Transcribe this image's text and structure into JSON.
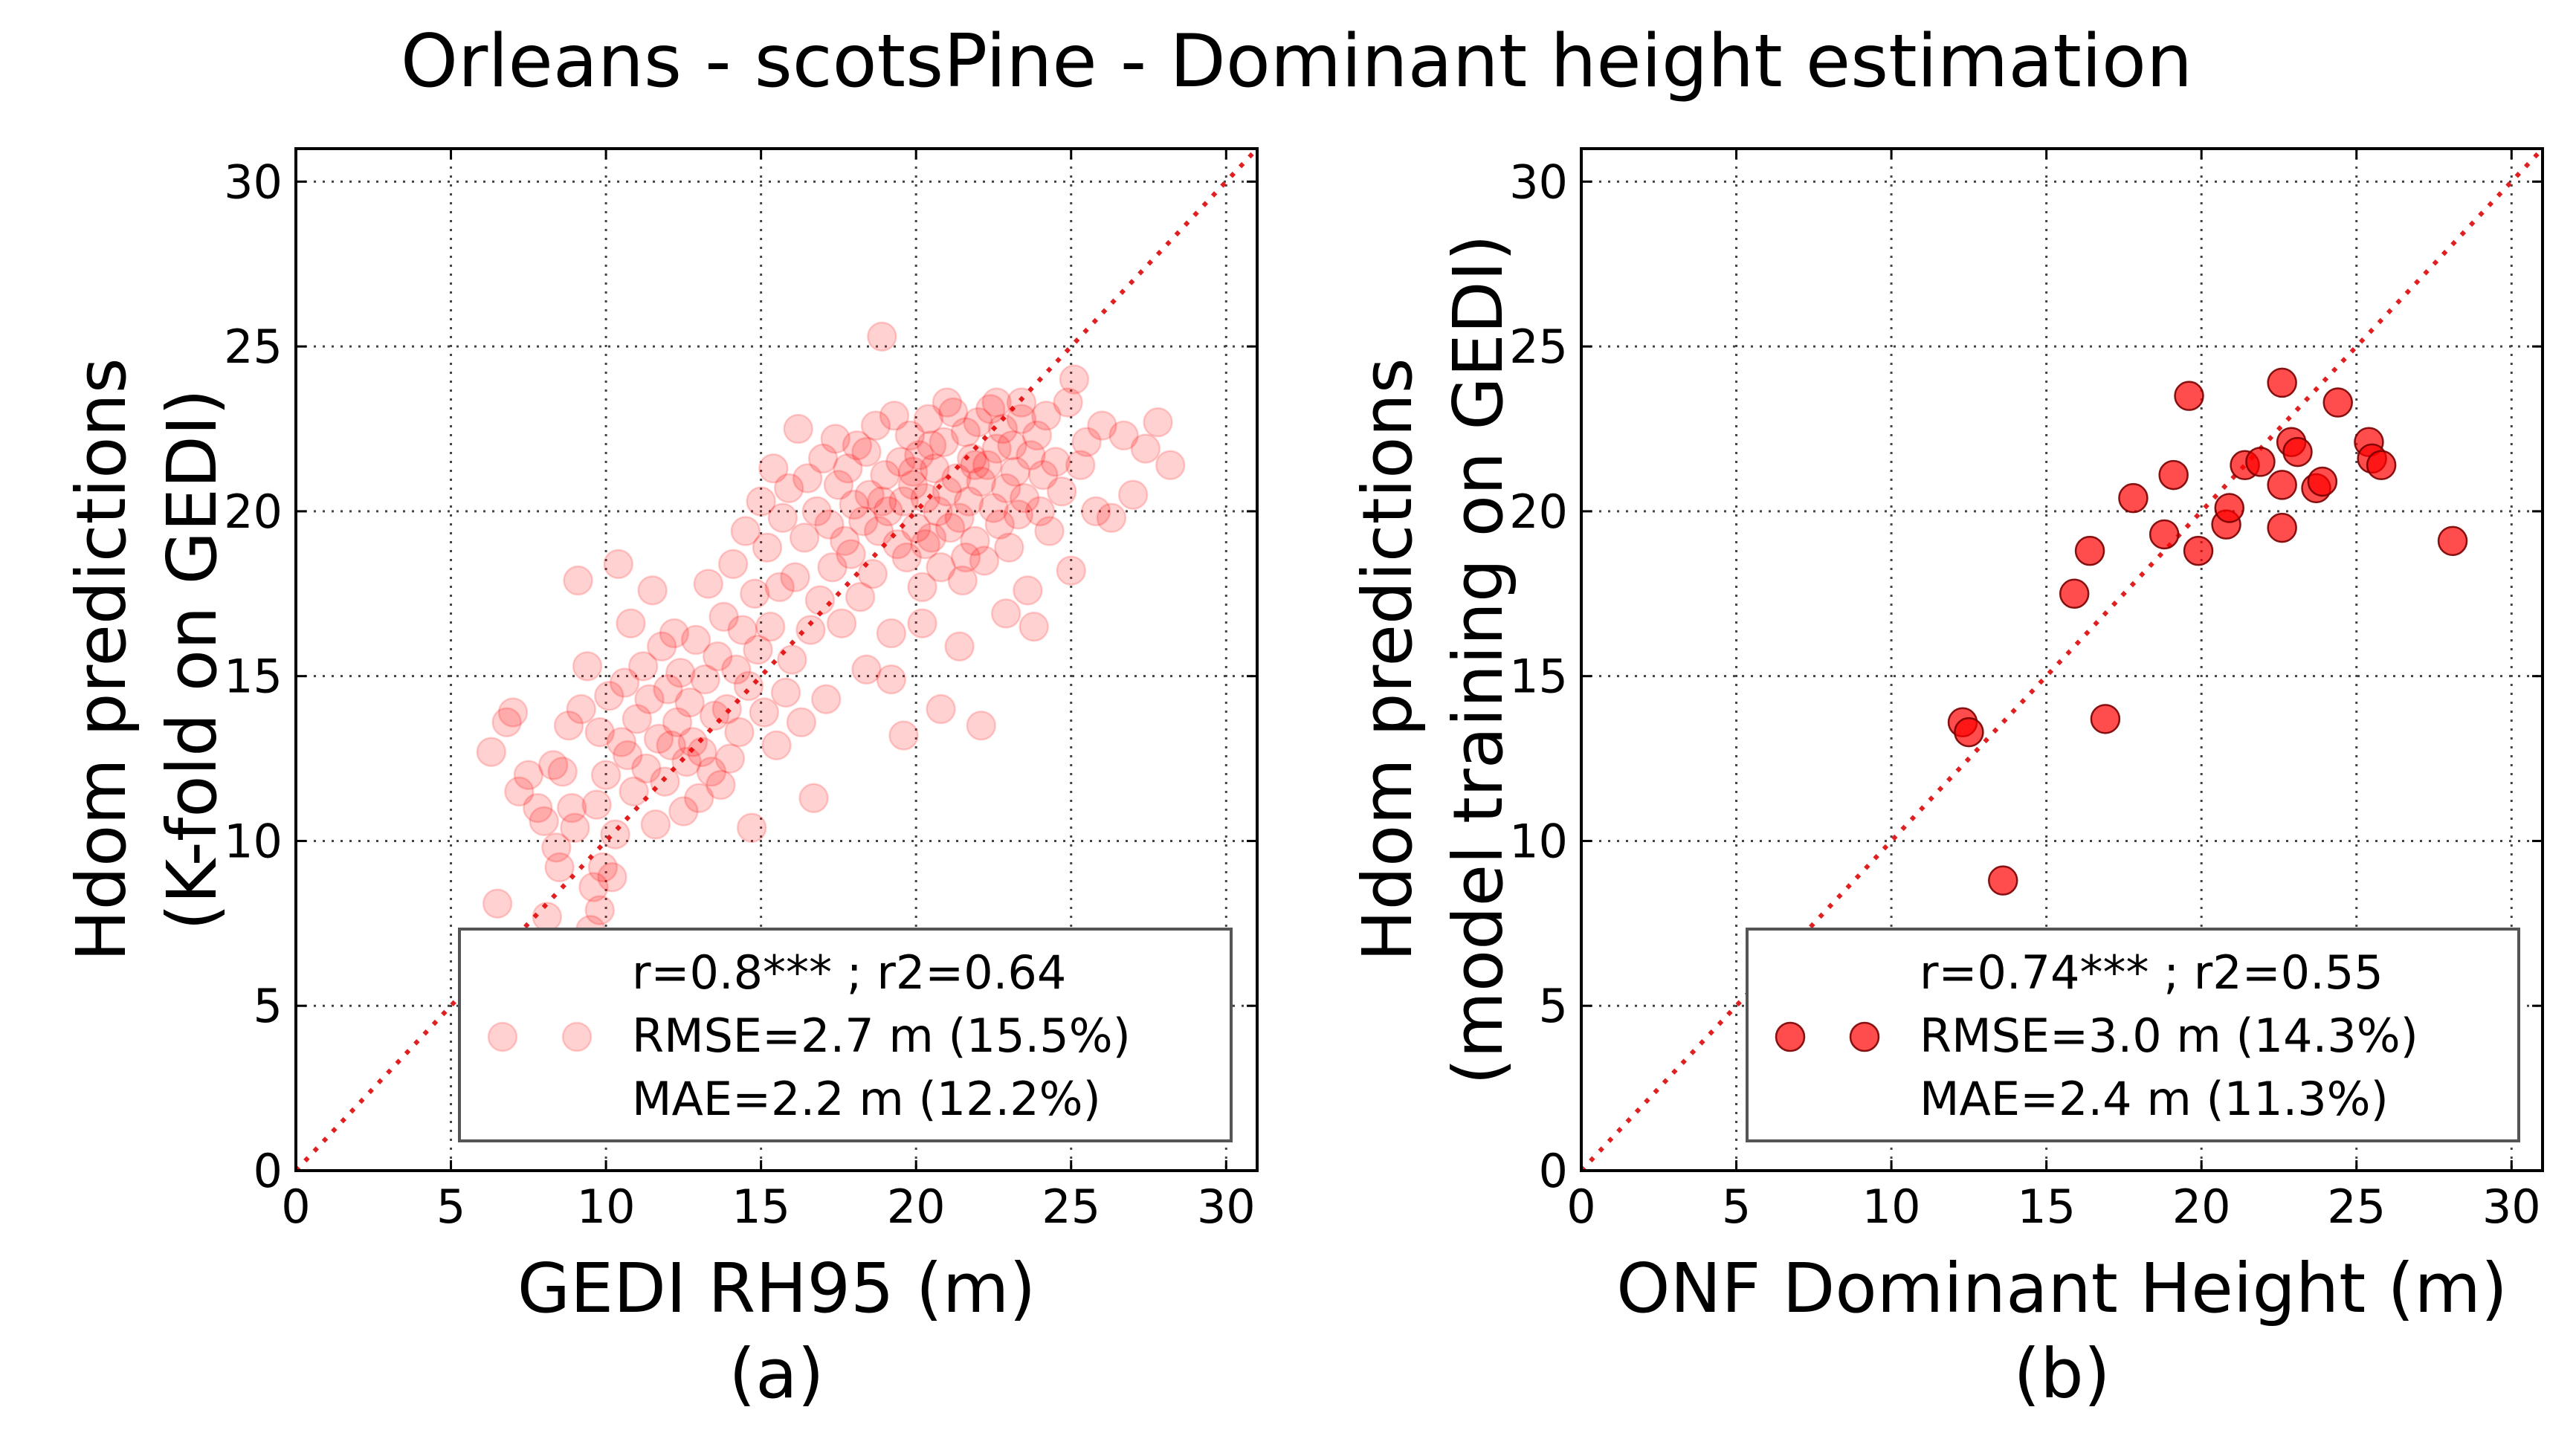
{
  "figure": {
    "title": "Orleans - scotsPine - Dominant height estimation",
    "marker_color": "#ff0000",
    "diagonal_color": "#e02020"
  },
  "chart_data": [
    {
      "type": "scatter",
      "panel_label": "(a)",
      "xlabel": "GEDI RH95 (m)",
      "ylabel_line1": "Hdom predictions",
      "ylabel_line2": "(K-fold on GEDI)",
      "xlim": [
        0,
        31
      ],
      "ylim": [
        0,
        31
      ],
      "xticks": [
        0,
        5,
        10,
        15,
        20,
        25,
        30
      ],
      "yticks": [
        0,
        5,
        10,
        15,
        20,
        25,
        30
      ],
      "grid": true,
      "reference_line": "y = x",
      "legend_position": "bottom-right",
      "legend": {
        "line1": "r=0.8*** ; r2=0.64",
        "line2": "RMSE=2.7 m (15.5%)",
        "line3": "MAE=2.2 m (12.2%)"
      },
      "marker_alpha": 0.18,
      "points": [
        [
          6.3,
          12.7
        ],
        [
          6.5,
          8.1
        ],
        [
          6.8,
          13.6
        ],
        [
          7.0,
          13.9
        ],
        [
          7.2,
          11.5
        ],
        [
          7.5,
          12.0
        ],
        [
          7.8,
          11.0
        ],
        [
          8.0,
          10.6
        ],
        [
          8.1,
          7.7
        ],
        [
          8.3,
          12.3
        ],
        [
          8.4,
          9.8
        ],
        [
          8.5,
          9.2
        ],
        [
          8.6,
          12.1
        ],
        [
          8.8,
          13.5
        ],
        [
          8.9,
          11.0
        ],
        [
          9.0,
          10.4
        ],
        [
          9.1,
          17.9
        ],
        [
          9.2,
          14.0
        ],
        [
          9.4,
          15.3
        ],
        [
          9.5,
          7.3
        ],
        [
          9.6,
          8.6
        ],
        [
          9.7,
          11.1
        ],
        [
          9.8,
          7.9
        ],
        [
          9.8,
          13.3
        ],
        [
          9.9,
          9.2
        ],
        [
          10.0,
          12.0
        ],
        [
          10.1,
          14.4
        ],
        [
          10.2,
          8.9
        ],
        [
          10.3,
          10.2
        ],
        [
          10.4,
          18.4
        ],
        [
          10.5,
          13.0
        ],
        [
          10.6,
          14.8
        ],
        [
          10.7,
          12.6
        ],
        [
          10.8,
          16.6
        ],
        [
          10.9,
          11.5
        ],
        [
          11.0,
          13.7
        ],
        [
          11.2,
          15.3
        ],
        [
          11.3,
          12.2
        ],
        [
          11.4,
          14.3
        ],
        [
          11.5,
          17.6
        ],
        [
          11.6,
          10.5
        ],
        [
          11.7,
          13.1
        ],
        [
          11.8,
          15.9
        ],
        [
          11.9,
          11.8
        ],
        [
          12.0,
          14.6
        ],
        [
          12.1,
          12.9
        ],
        [
          12.2,
          16.3
        ],
        [
          12.3,
          13.6
        ],
        [
          12.4,
          15.1
        ],
        [
          12.5,
          10.9
        ],
        [
          12.6,
          12.4
        ],
        [
          12.7,
          14.2
        ],
        [
          12.8,
          13.0
        ],
        [
          12.9,
          16.1
        ],
        [
          13.0,
          11.3
        ],
        [
          13.1,
          12.7
        ],
        [
          13.2,
          14.9
        ],
        [
          13.3,
          17.8
        ],
        [
          13.4,
          12.1
        ],
        [
          13.5,
          13.8
        ],
        [
          13.6,
          15.6
        ],
        [
          13.7,
          11.7
        ],
        [
          13.8,
          16.8
        ],
        [
          13.9,
          14.0
        ],
        [
          14.0,
          12.5
        ],
        [
          14.1,
          18.4
        ],
        [
          14.2,
          15.2
        ],
        [
          14.3,
          13.3
        ],
        [
          14.4,
          16.4
        ],
        [
          14.5,
          19.4
        ],
        [
          14.6,
          14.7
        ],
        [
          14.7,
          10.4
        ],
        [
          14.8,
          17.5
        ],
        [
          14.9,
          15.8
        ],
        [
          15.0,
          20.3
        ],
        [
          15.1,
          13.9
        ],
        [
          15.2,
          18.9
        ],
        [
          15.3,
          16.5
        ],
        [
          15.4,
          21.3
        ],
        [
          15.5,
          12.9
        ],
        [
          15.6,
          17.7
        ],
        [
          15.7,
          19.8
        ],
        [
          15.8,
          14.5
        ],
        [
          15.9,
          20.7
        ],
        [
          16.0,
          15.5
        ],
        [
          16.1,
          18.0
        ],
        [
          16.2,
          22.5
        ],
        [
          16.3,
          13.6
        ],
        [
          16.4,
          19.2
        ],
        [
          16.5,
          21.0
        ],
        [
          16.6,
          16.4
        ],
        [
          16.7,
          11.3
        ],
        [
          16.8,
          20.0
        ],
        [
          16.9,
          17.3
        ],
        [
          17.0,
          21.6
        ],
        [
          17.1,
          14.3
        ],
        [
          17.2,
          19.6
        ],
        [
          17.3,
          18.3
        ],
        [
          17.4,
          22.2
        ],
        [
          17.5,
          20.8
        ],
        [
          17.6,
          16.6
        ],
        [
          17.7,
          19.1
        ],
        [
          17.8,
          21.3
        ],
        [
          17.9,
          18.7
        ],
        [
          18.0,
          20.2
        ],
        [
          18.1,
          22.0
        ],
        [
          18.2,
          17.4
        ],
        [
          18.3,
          19.7
        ],
        [
          18.4,
          21.8
        ],
        [
          18.5,
          20.5
        ],
        [
          18.6,
          18.1
        ],
        [
          18.7,
          22.6
        ],
        [
          18.8,
          19.4
        ],
        [
          18.9,
          25.3
        ],
        [
          19.0,
          21.1
        ],
        [
          19.1,
          20.0
        ],
        [
          19.2,
          16.3
        ],
        [
          19.3,
          22.9
        ],
        [
          19.4,
          19.0
        ],
        [
          19.5,
          21.5
        ],
        [
          19.6,
          20.3
        ],
        [
          19.7,
          18.6
        ],
        [
          19.8,
          22.3
        ],
        [
          19.9,
          20.8
        ],
        [
          20.0,
          19.5
        ],
        [
          20.1,
          21.7
        ],
        [
          20.2,
          17.7
        ],
        [
          20.3,
          20.4
        ],
        [
          20.4,
          22.8
        ],
        [
          20.5,
          19.2
        ],
        [
          20.6,
          21.3
        ],
        [
          20.7,
          20.0
        ],
        [
          20.8,
          18.3
        ],
        [
          20.9,
          22.1
        ],
        [
          21.0,
          20.6
        ],
        [
          21.1,
          19.5
        ],
        [
          21.2,
          23.0
        ],
        [
          21.3,
          21.0
        ],
        [
          21.4,
          19.8
        ],
        [
          21.5,
          17.9
        ],
        [
          21.6,
          22.4
        ],
        [
          21.7,
          20.3
        ],
        [
          21.8,
          21.6
        ],
        [
          21.9,
          19.1
        ],
        [
          22.0,
          22.7
        ],
        [
          22.1,
          20.9
        ],
        [
          22.2,
          18.5
        ],
        [
          22.3,
          21.4
        ],
        [
          22.4,
          23.1
        ],
        [
          22.5,
          20.1
        ],
        [
          22.6,
          21.9
        ],
        [
          22.7,
          19.6
        ],
        [
          22.8,
          22.5
        ],
        [
          22.9,
          20.7
        ],
        [
          23.0,
          18.9
        ],
        [
          23.1,
          22.0
        ],
        [
          23.2,
          21.2
        ],
        [
          23.3,
          19.9
        ],
        [
          23.4,
          22.8
        ],
        [
          23.5,
          20.4
        ],
        [
          23.6,
          17.6
        ],
        [
          23.7,
          21.7
        ],
        [
          23.8,
          16.5
        ],
        [
          23.9,
          22.3
        ],
        [
          24.0,
          20.0
        ],
        [
          24.1,
          21.1
        ],
        [
          24.2,
          22.9
        ],
        [
          24.3,
          19.4
        ],
        [
          24.5,
          21.5
        ],
        [
          24.7,
          20.6
        ],
        [
          24.9,
          23.3
        ],
        [
          25.0,
          18.2
        ],
        [
          25.1,
          24.0
        ],
        [
          25.3,
          21.4
        ],
        [
          25.5,
          22.1
        ],
        [
          25.8,
          20.0
        ],
        [
          26.0,
          22.6
        ],
        [
          26.3,
          19.8
        ],
        [
          26.7,
          22.3
        ],
        [
          27.0,
          20.5
        ],
        [
          27.4,
          21.9
        ],
        [
          27.8,
          22.7
        ],
        [
          28.2,
          21.4
        ],
        [
          19.6,
          13.2
        ],
        [
          20.8,
          14.0
        ],
        [
          22.1,
          13.5
        ],
        [
          18.4,
          15.2
        ],
        [
          19.2,
          14.9
        ],
        [
          20.2,
          16.6
        ],
        [
          21.4,
          15.9
        ],
        [
          22.9,
          16.9
        ],
        [
          21.0,
          23.3
        ],
        [
          20.5,
          22.0
        ],
        [
          19.9,
          21.2
        ],
        [
          21.9,
          21.4
        ],
        [
          18.9,
          20.3
        ],
        [
          20.3,
          19.0
        ],
        [
          21.6,
          18.6
        ],
        [
          22.6,
          23.3
        ],
        [
          23.4,
          23.3
        ]
      ]
    },
    {
      "type": "scatter",
      "panel_label": "(b)",
      "xlabel": "ONF Dominant Height (m)",
      "ylabel_line1": "Hdom predictions",
      "ylabel_line2": "(model training on GEDI)",
      "xlim": [
        0,
        31
      ],
      "ylim": [
        0,
        31
      ],
      "xticks": [
        0,
        5,
        10,
        15,
        20,
        25,
        30
      ],
      "yticks": [
        0,
        5,
        10,
        15,
        20,
        25,
        30
      ],
      "grid": true,
      "reference_line": "y = x",
      "legend_position": "bottom-right",
      "legend": {
        "line1": "r=0.74*** ; r2=0.55",
        "line2": "RMSE=3.0 m (14.3%)",
        "line3": "MAE=2.4 m (11.3%)"
      },
      "marker_alpha": 0.7,
      "points": [
        [
          12.3,
          13.6
        ],
        [
          12.5,
          13.3
        ],
        [
          13.6,
          8.8
        ],
        [
          15.9,
          17.5
        ],
        [
          16.4,
          18.8
        ],
        [
          16.9,
          13.7
        ],
        [
          17.8,
          20.4
        ],
        [
          18.8,
          19.3
        ],
        [
          19.1,
          21.1
        ],
        [
          19.6,
          23.5
        ],
        [
          19.9,
          18.8
        ],
        [
          20.8,
          19.6
        ],
        [
          20.9,
          20.1
        ],
        [
          21.4,
          21.4
        ],
        [
          21.9,
          21.5
        ],
        [
          22.6,
          19.5
        ],
        [
          22.6,
          20.8
        ],
        [
          22.6,
          23.9
        ],
        [
          22.9,
          22.1
        ],
        [
          23.1,
          21.8
        ],
        [
          23.7,
          20.7
        ],
        [
          23.9,
          20.9
        ],
        [
          24.4,
          23.3
        ],
        [
          25.4,
          22.1
        ],
        [
          25.5,
          21.6
        ],
        [
          25.8,
          21.4
        ],
        [
          28.1,
          19.1
        ]
      ]
    }
  ]
}
